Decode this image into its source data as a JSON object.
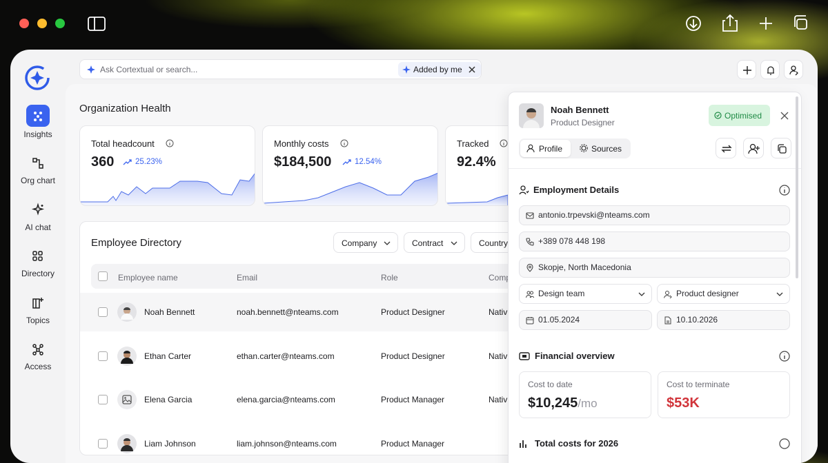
{
  "window": {
    "search_placeholder": "Ask Cortextual or search...",
    "filter_chip": "Added by me"
  },
  "sidebar": {
    "items": [
      "Insights",
      "Org chart",
      "AI chat",
      "Directory",
      "Topics",
      "Access"
    ]
  },
  "main": {
    "title": "Organization Health",
    "metrics": [
      {
        "label": "Total headcount",
        "value": "360",
        "change": "25.23%"
      },
      {
        "label": "Monthly costs",
        "value": "$184,500",
        "change": "12.54%"
      },
      {
        "label": "Tracked",
        "value": "92.4%"
      }
    ]
  },
  "directory": {
    "title": "Employee Directory",
    "filters": [
      "Company",
      "Contract",
      "Country"
    ],
    "columns": [
      "Employee name",
      "Email",
      "Role",
      "Comp"
    ],
    "rows": [
      [
        "Noah Bennett",
        "noah.bennett@nteams.com",
        "Product Designer",
        "Nativ"
      ],
      [
        "Ethan Carter",
        "ethan.carter@nteams.com",
        "Product Designer",
        "Nativ"
      ],
      [
        "Elena Garcia",
        "elena.garcia@nteams.com",
        "Product Manager",
        "Nativ"
      ],
      [
        "Liam Johnson",
        "liam.johnson@nteams.com",
        "Product Manager"
      ]
    ]
  },
  "panel": {
    "name": "Noah Bennett",
    "role": "Product Designer",
    "status": "Optimised",
    "tabs": [
      "Profile",
      "Sources"
    ],
    "employment": {
      "title": "Employment Details",
      "email": "antonio.trpevski@nteams.com",
      "phone": "+389 078 448 198",
      "location": "Skopje, North Macedonia",
      "team": "Design team",
      "position": "Product designer",
      "start_date": "01.05.2024",
      "end_date": "10.10.2026"
    },
    "financial": {
      "title": "Financial overview",
      "cost_to_date_label": "Cost to date",
      "cost_to_date": "$10,245",
      "cost_unit": "/mo",
      "terminate_label": "Cost to terminate",
      "terminate_value": "$53K"
    },
    "next_section": "Total costs for 2026"
  }
}
